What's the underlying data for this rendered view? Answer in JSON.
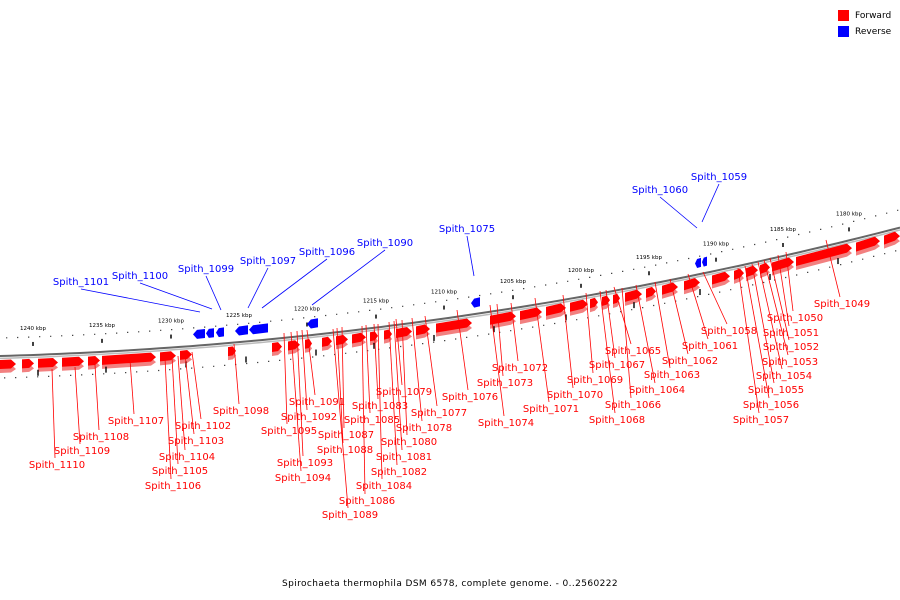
{
  "legend": [
    {
      "label": "Forward",
      "color": "#ff0000"
    },
    {
      "label": "Reverse",
      "color": "#0000ff"
    }
  ],
  "caption": "Spirochaeta thermophila DSM 6578, complete genome. - 0..2560222",
  "colors": {
    "forward": "#ff0000",
    "reverse": "#0000ff",
    "backbone": "#888888"
  },
  "scale_labels": [
    "1180 kbp",
    "1185 kbp",
    "1190 kbp",
    "1195 kbp",
    "1200 kbp",
    "1205 kbp",
    "1210 kbp",
    "1215 kbp",
    "1220 kbp",
    "1225 kbp",
    "1230 kbp",
    "1235 kbp",
    "1240 kbp"
  ],
  "reverse_genes": [
    "Spith_1059",
    "Spith_1060",
    "Spith_1075",
    "Spith_1090",
    "Spith_1096",
    "Spith_1097",
    "Spith_1099",
    "Spith_1100",
    "Spith_1101"
  ],
  "forward_genes": [
    "Spith_1049",
    "Spith_1050",
    "Spith_1051",
    "Spith_1052",
    "Spith_1053",
    "Spith_1054",
    "Spith_1055",
    "Spith_1056",
    "Spith_1057",
    "Spith_1058",
    "Spith_1061",
    "Spith_1062",
    "Spith_1063",
    "Spith_1064",
    "Spith_1065",
    "Spith_1066",
    "Spith_1067",
    "Spith_1068",
    "Spith_1069",
    "Spith_1070",
    "Spith_1071",
    "Spith_1072",
    "Spith_1073",
    "Spith_1074",
    "Spith_1076",
    "Spith_1077",
    "Spith_1078",
    "Spith_1079",
    "Spith_1080",
    "Spith_1081",
    "Spith_1082",
    "Spith_1083",
    "Spith_1084",
    "Spith_1085",
    "Spith_1086",
    "Spith_1087",
    "Spith_1088",
    "Spith_1089",
    "Spith_1091",
    "Spith_1092",
    "Spith_1093",
    "Spith_1094",
    "Spith_1095",
    "Spith_1098",
    "Spith_1102",
    "Spith_1103",
    "Spith_1104",
    "Spith_1105",
    "Spith_1106",
    "Spith_1107",
    "Spith_1108",
    "Spith_1109",
    "Spith_1110"
  ]
}
